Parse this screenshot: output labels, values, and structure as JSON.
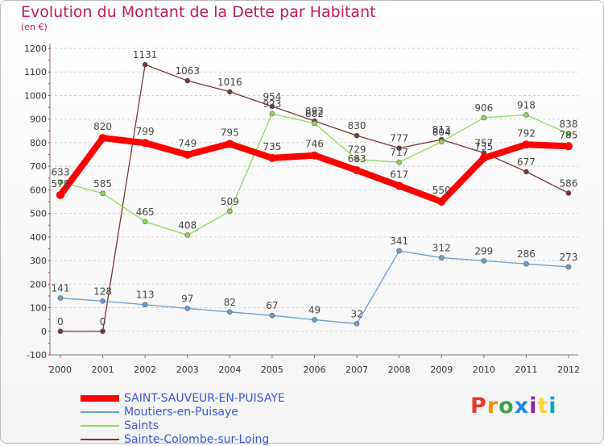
{
  "header": {
    "title": "Evolution du Montant de la Dette par Habitant",
    "subtitle": "(en €)"
  },
  "logo": {
    "letters": [
      "P",
      "r",
      "o",
      "x",
      "i",
      "t",
      "i"
    ],
    "colors": [
      "#e53935",
      "#fb8c00",
      "#43a047",
      "#1e88e5",
      "#8e24aa",
      "#fdd835",
      "#00acc1"
    ]
  },
  "chart_data": {
    "type": "line",
    "title": "Evolution du Montant de la Dette par Habitant",
    "ylabel": "(en €)",
    "xlabel": "",
    "x": [
      "2000",
      "2001",
      "2002",
      "2003",
      "2004",
      "2005",
      "2006",
      "2007",
      "2008",
      "2009",
      "2010",
      "2011",
      "2012"
    ],
    "ylim": [
      -100,
      1200
    ],
    "yticks": [
      -100,
      0,
      100,
      200,
      300,
      400,
      500,
      600,
      700,
      800,
      900,
      1000,
      1100,
      1200
    ],
    "grid": "horizontal dashed",
    "legend_position": "bottom-left",
    "series": [
      {
        "name": "SAINT-SAUVEUR-EN-PUISAYE",
        "color": "#ff0000",
        "values": [
          578,
          820,
          799,
          749,
          795,
          735,
          746,
          683,
          617,
          550,
          735,
          792,
          785
        ]
      },
      {
        "name": "Moutiers-en-Puisaye",
        "color": "#6a9fd4",
        "values": [
          141,
          128,
          113,
          97,
          82,
          67,
          49,
          32,
          341,
          312,
          299,
          286,
          273
        ]
      },
      {
        "name": "Saints",
        "color": "#8fd85a",
        "values": [
          633,
          585,
          465,
          408,
          509,
          923,
          882,
          729,
          717,
          804,
          906,
          918,
          838
        ]
      },
      {
        "name": "Sainte-Colombe-sur-Loing",
        "color": "#7d3535",
        "values": [
          0,
          0,
          1131,
          1063,
          1016,
          954,
          892,
          830,
          777,
          813,
          757,
          677,
          586
        ]
      }
    ]
  }
}
